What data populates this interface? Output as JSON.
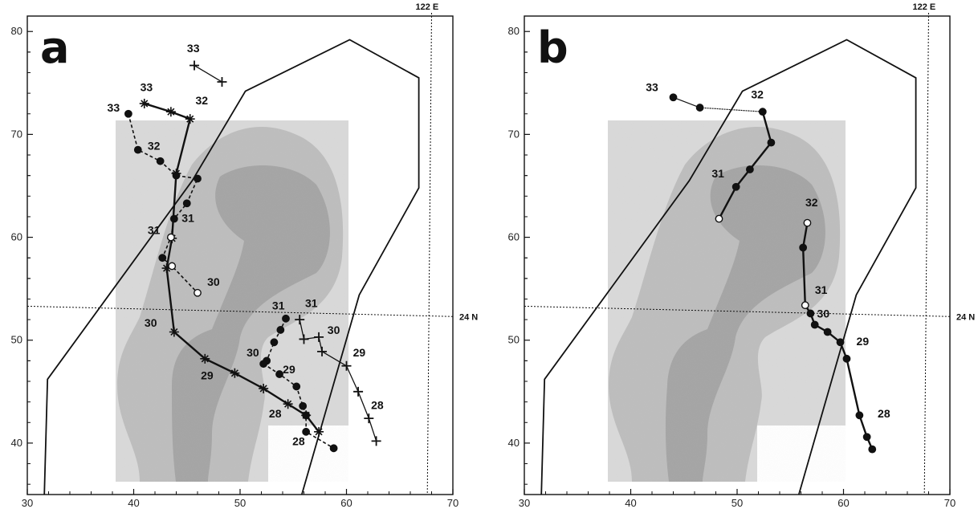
{
  "panels": [
    {
      "letter": "a",
      "corner_label": "122 E",
      "hline_label": "24 N",
      "x_ticks": [
        "30",
        "40",
        "50",
        "60",
        "70"
      ],
      "y_ticks": [
        "40",
        "50",
        "60",
        "70",
        "80"
      ],
      "polygon": [
        [
          31.6,
          35
        ],
        [
          31.9,
          46.2
        ],
        [
          45.5,
          65.5
        ],
        [
          50.5,
          74.2
        ],
        [
          60.3,
          79.2
        ],
        [
          66.8,
          75.5
        ],
        [
          66.8,
          64.8
        ],
        [
          61.2,
          54.4
        ],
        [
          55.8,
          35
        ]
      ],
      "tracks": [
        {
          "name": "plus-top",
          "style": "thin-solid",
          "marker": "plus",
          "points": [
            [
              45.7,
              76.7
            ],
            [
              48.3,
              75.1
            ]
          ]
        },
        {
          "name": "asterisk",
          "style": "thick-solid",
          "marker": "asterisk",
          "points": [
            [
              41.0,
              73.0
            ],
            [
              43.5,
              72.2
            ],
            [
              45.3,
              71.5
            ],
            [
              44.0,
              66.2
            ],
            [
              43.6,
              59.9
            ],
            [
              43.1,
              57.0
            ],
            [
              43.8,
              50.8
            ],
            [
              46.7,
              48.2
            ],
            [
              49.5,
              46.8
            ],
            [
              52.2,
              45.3
            ],
            [
              54.5,
              43.8
            ],
            [
              56.2,
              42.7
            ],
            [
              57.4,
              41.1
            ]
          ]
        },
        {
          "name": "filled-dashed",
          "style": "dashed",
          "marker": "dot",
          "points": [
            [
              39.5,
              72.0
            ],
            [
              40.4,
              68.5
            ],
            [
              42.5,
              67.4
            ],
            [
              44.0,
              66.0
            ],
            [
              46.0,
              65.7
            ],
            [
              45.0,
              63.3
            ],
            [
              43.8,
              61.8
            ],
            [
              43.5,
              60.0
            ],
            [
              42.7,
              58.0
            ],
            [
              43.6,
              57.2
            ],
            [
              46.0,
              54.6
            ]
          ]
        },
        {
          "name": "filled-dashed-lower",
          "style": "dashed",
          "marker": "dot",
          "points": [
            [
              54.3,
              52.1
            ],
            [
              53.8,
              51.0
            ],
            [
              53.2,
              49.8
            ],
            [
              52.5,
              48.0
            ],
            [
              52.2,
              47.7
            ],
            [
              53.7,
              46.7
            ],
            [
              55.3,
              45.5
            ],
            [
              55.9,
              43.6
            ],
            [
              56.2,
              42.7
            ],
            [
              56.2,
              41.1
            ],
            [
              58.8,
              39.5
            ]
          ]
        },
        {
          "name": "plus-right",
          "style": "thin-solid",
          "marker": "plus",
          "points": [
            [
              55.6,
              52.0
            ],
            [
              56.0,
              50.1
            ],
            [
              57.4,
              50.3
            ],
            [
              57.7,
              48.9
            ],
            [
              60.0,
              47.5
            ],
            [
              61.1,
              45.0
            ],
            [
              62.1,
              42.4
            ],
            [
              62.8,
              40.2
            ]
          ]
        }
      ],
      "labels": [
        {
          "text": "33",
          "x": 45.6,
          "y": 78.0
        },
        {
          "text": "33",
          "x": 41.2,
          "y": 74.2
        },
        {
          "text": "33",
          "x": 38.1,
          "y": 72.2
        },
        {
          "text": "32",
          "x": 46.4,
          "y": 72.9
        },
        {
          "text": "32",
          "x": 41.9,
          "y": 68.5
        },
        {
          "text": "31",
          "x": 45.1,
          "y": 61.5
        },
        {
          "text": "31",
          "x": 41.9,
          "y": 60.3
        },
        {
          "text": "30",
          "x": 47.5,
          "y": 55.3
        },
        {
          "text": "30",
          "x": 41.6,
          "y": 51.3
        },
        {
          "text": "31",
          "x": 53.6,
          "y": 53.0
        },
        {
          "text": "31",
          "x": 56.7,
          "y": 53.2
        },
        {
          "text": "30",
          "x": 58.8,
          "y": 50.6
        },
        {
          "text": "30",
          "x": 51.2,
          "y": 48.4
        },
        {
          "text": "29",
          "x": 54.6,
          "y": 46.8
        },
        {
          "text": "29",
          "x": 61.2,
          "y": 48.4
        },
        {
          "text": "29",
          "x": 46.9,
          "y": 46.2
        },
        {
          "text": "28",
          "x": 53.3,
          "y": 42.5
        },
        {
          "text": "28",
          "x": 62.9,
          "y": 43.3
        },
        {
          "text": "28",
          "x": 55.5,
          "y": 39.8
        }
      ]
    },
    {
      "letter": "b",
      "corner_label": "122 E",
      "hline_label": "24 N",
      "x_ticks": [
        "30",
        "40",
        "50",
        "60",
        "70"
      ],
      "y_ticks": [
        "40",
        "50",
        "60",
        "70",
        "80"
      ],
      "polygon": [
        [
          31.6,
          35
        ],
        [
          31.9,
          46.2
        ],
        [
          45.5,
          65.5
        ],
        [
          50.5,
          74.2
        ],
        [
          60.3,
          79.2
        ],
        [
          66.8,
          75.5
        ],
        [
          66.8,
          64.8
        ],
        [
          61.2,
          54.4
        ],
        [
          55.8,
          35
        ]
      ],
      "tracks": [
        {
          "name": "b-upper",
          "style": "mixed",
          "marker": "dot",
          "points": [
            [
              44.0,
              73.6
            ],
            [
              46.5,
              72.6
            ],
            [
              52.4,
              72.2
            ],
            [
              53.2,
              69.2
            ],
            [
              51.2,
              66.6
            ],
            [
              49.9,
              64.9
            ],
            [
              48.3,
              61.8
            ]
          ]
        },
        {
          "name": "b-lower",
          "style": "thick-solid",
          "marker": "dot",
          "points": [
            [
              56.6,
              61.4
            ],
            [
              56.2,
              59.0
            ],
            [
              56.4,
              53.4
            ],
            [
              56.9,
              52.6
            ],
            [
              57.3,
              51.5
            ],
            [
              58.5,
              50.8
            ],
            [
              59.7,
              49.8
            ],
            [
              60.3,
              48.2
            ],
            [
              61.5,
              42.7
            ],
            [
              62.2,
              40.6
            ],
            [
              62.7,
              39.4
            ]
          ]
        }
      ],
      "labels": [
        {
          "text": "33",
          "x": 42.0,
          "y": 74.2
        },
        {
          "text": "32",
          "x": 51.9,
          "y": 73.5
        },
        {
          "text": "31",
          "x": 48.2,
          "y": 65.8
        },
        {
          "text": "32",
          "x": 57.0,
          "y": 63.0
        },
        {
          "text": "31",
          "x": 57.9,
          "y": 54.5
        },
        {
          "text": "30",
          "x": 58.1,
          "y": 52.2
        },
        {
          "text": "29",
          "x": 61.8,
          "y": 49.5
        },
        {
          "text": "28",
          "x": 63.8,
          "y": 42.5
        }
      ]
    }
  ]
}
